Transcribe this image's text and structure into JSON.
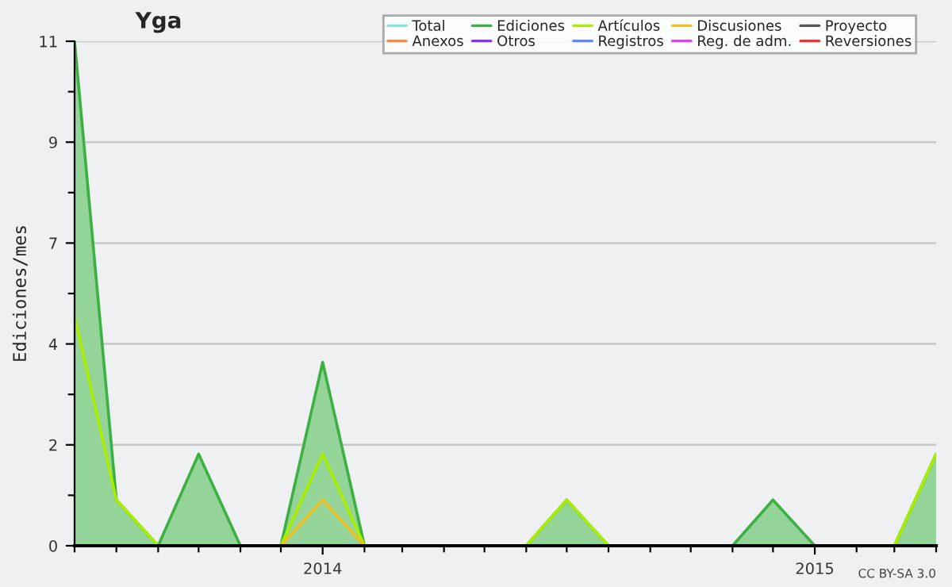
{
  "chart_data": {
    "type": "area",
    "title": "Yga",
    "ylabel": "Ediciones/mes",
    "x": [
      "2013-07",
      "2013-08",
      "2013-09",
      "2013-10",
      "2013-11",
      "2013-12",
      "2014-01",
      "2014-02",
      "2014-03",
      "2014-04",
      "2014-05",
      "2014-06",
      "2014-07",
      "2014-08",
      "2014-09",
      "2014-10",
      "2014-11",
      "2014-12",
      "2015-01",
      "2015-02",
      "2015-03",
      "2015-04"
    ],
    "series": [
      {
        "name": "Total",
        "color": "#88e0e0",
        "type": "line",
        "values": [
          null,
          null,
          null,
          null,
          null,
          null,
          null,
          null,
          null,
          null,
          null,
          null,
          null,
          null,
          null,
          null,
          null,
          null,
          null,
          null,
          null,
          null
        ]
      },
      {
        "name": "Ediciones",
        "color": "#3cb043",
        "values": [
          11,
          1,
          0,
          2,
          0,
          0,
          4,
          0,
          0,
          0,
          0,
          0,
          1,
          0,
          0,
          0,
          0,
          1,
          0,
          0,
          0,
          2
        ]
      },
      {
        "name": "Artículos",
        "color": "#aaee00",
        "type": "line",
        "values": [
          5,
          1,
          0,
          0,
          0,
          0,
          2,
          0,
          0,
          0,
          0,
          0,
          1,
          0,
          0,
          0,
          0,
          0,
          0,
          0,
          0,
          2
        ]
      },
      {
        "name": "Discusiones",
        "color": "#f0c020",
        "type": "line",
        "values": [
          null,
          null,
          null,
          null,
          null,
          0,
          1,
          0,
          null,
          null,
          null,
          null,
          null,
          null,
          null,
          null,
          null,
          null,
          null,
          null,
          null,
          null
        ]
      },
      {
        "name": "Proyecto",
        "color": "#555555",
        "type": "line",
        "values": [
          null,
          null,
          null,
          null,
          null,
          null,
          null,
          null,
          null,
          null,
          null,
          null,
          null,
          null,
          null,
          null,
          null,
          null,
          null,
          null,
          null,
          null
        ]
      },
      {
        "name": "Anexos",
        "color": "#ff8844",
        "type": "line",
        "values": [
          null,
          null,
          null,
          null,
          null,
          null,
          null,
          null,
          null,
          null,
          null,
          null,
          null,
          null,
          null,
          null,
          null,
          null,
          null,
          null,
          null,
          null
        ]
      },
      {
        "name": "Otros",
        "color": "#8833ee",
        "type": "line",
        "values": [
          null,
          null,
          null,
          null,
          null,
          null,
          null,
          null,
          null,
          null,
          null,
          null,
          null,
          null,
          null,
          null,
          null,
          null,
          null,
          null,
          null,
          null
        ]
      },
      {
        "name": "Registros",
        "color": "#6688ff",
        "type": "line",
        "values": [
          null,
          null,
          null,
          null,
          null,
          null,
          null,
          null,
          null,
          null,
          null,
          null,
          null,
          null,
          null,
          null,
          null,
          null,
          null,
          null,
          null,
          null
        ]
      },
      {
        "name": "Reg. de adm.",
        "color": "#dd44ee",
        "type": "line",
        "values": [
          null,
          null,
          null,
          null,
          null,
          null,
          null,
          null,
          null,
          null,
          null,
          null,
          null,
          null,
          null,
          null,
          null,
          null,
          null,
          null,
          null,
          null
        ]
      },
      {
        "name": "Reversiones",
        "color": "#ee3333",
        "type": "line",
        "values": [
          null,
          null,
          null,
          null,
          null,
          null,
          null,
          null,
          null,
          null,
          null,
          null,
          null,
          null,
          null,
          null,
          null,
          null,
          null,
          null,
          null,
          null
        ]
      }
    ],
    "xlim": [
      "2013-07",
      "2015-04"
    ],
    "xticks": [
      {
        "value": "2013-07",
        "label": null
      },
      {
        "value": "2013-08",
        "label": null
      },
      {
        "value": "2013-09",
        "label": null
      },
      {
        "value": "2013-10",
        "label": null
      },
      {
        "value": "2013-11",
        "label": null
      },
      {
        "value": "2013-12",
        "label": null
      },
      {
        "value": "2014-01",
        "label": "2014"
      },
      {
        "value": "2014-02",
        "label": null
      },
      {
        "value": "2014-03",
        "label": null
      },
      {
        "value": "2014-04",
        "label": null
      },
      {
        "value": "2014-05",
        "label": null
      },
      {
        "value": "2014-06",
        "label": null
      },
      {
        "value": "2014-07",
        "label": null
      },
      {
        "value": "2014-08",
        "label": null
      },
      {
        "value": "2014-09",
        "label": null
      },
      {
        "value": "2014-10",
        "label": null
      },
      {
        "value": "2014-11",
        "label": null
      },
      {
        "value": "2014-12",
        "label": null
      },
      {
        "value": "2015-01",
        "label": "2015"
      },
      {
        "value": "2015-02",
        "label": null
      },
      {
        "value": "2015-03",
        "label": null
      },
      {
        "value": "2015-04",
        "label": null
      }
    ],
    "ylim": [
      0,
      11
    ],
    "yticks": [
      0,
      {
        "value": 1.1,
        "label": null
      },
      {
        "value": 2.2,
        "label": "2"
      },
      {
        "value": 3.3,
        "label": null
      },
      {
        "value": 4.4,
        "label": "4"
      },
      {
        "value": 5.5,
        "label": null
      },
      {
        "value": 6.6,
        "label": "7"
      },
      {
        "value": 7.7,
        "label": null
      },
      {
        "value": 8.8,
        "label": "9"
      },
      {
        "value": 9.9,
        "label": null
      },
      11
    ],
    "grid": "y",
    "legend": "top right",
    "marker": "none",
    "line_style": "solid",
    "annotations": [
      "CC BY-SA 3.0"
    ]
  }
}
